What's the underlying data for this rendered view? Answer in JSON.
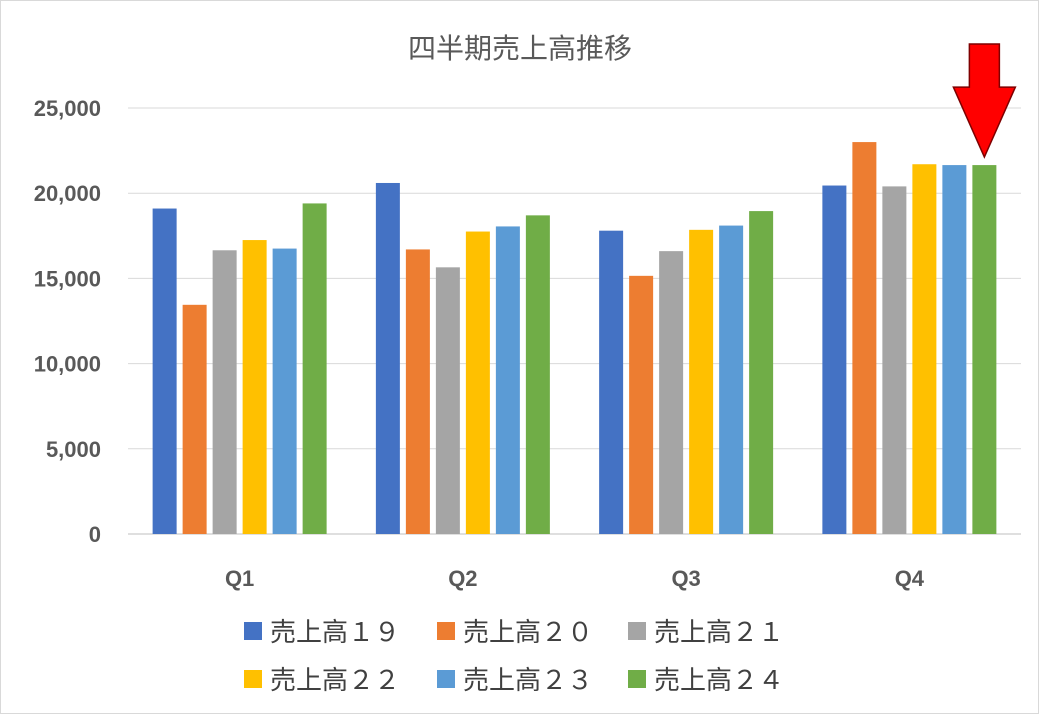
{
  "chart_data": {
    "type": "bar",
    "title": "四半期売上高推移",
    "xlabel": "",
    "ylabel": "",
    "categories": [
      "Q1",
      "Q2",
      "Q3",
      "Q4"
    ],
    "ylim": [
      0,
      25000
    ],
    "yticks": [
      0,
      5000,
      10000,
      15000,
      20000,
      25000
    ],
    "ytick_labels": [
      "0",
      "5,000",
      "10,000",
      "15,000",
      "20,000",
      "25,000"
    ],
    "grid": true,
    "legend_position": "bottom",
    "series": [
      {
        "name": "売上高１９",
        "color": "#4472C4",
        "values": [
          19100,
          20600,
          17800,
          20450
        ]
      },
      {
        "name": "売上高２０",
        "color": "#ED7D31",
        "values": [
          13450,
          16700,
          15150,
          23000
        ]
      },
      {
        "name": "売上高２１",
        "color": "#A5A5A5",
        "values": [
          16650,
          15650,
          16600,
          20400
        ]
      },
      {
        "name": "売上高２２",
        "color": "#FFC000",
        "values": [
          17250,
          17750,
          17850,
          21700
        ]
      },
      {
        "name": "売上高２３",
        "color": "#5B9BD5",
        "values": [
          16750,
          18050,
          18100,
          21650
        ]
      },
      {
        "name": "売上高２４",
        "color": "#70AD47",
        "values": [
          19400,
          18700,
          18950,
          21650
        ]
      }
    ],
    "annotation": {
      "type": "arrow",
      "color": "#FF0000",
      "target": "Q4 売上高２４"
    }
  }
}
